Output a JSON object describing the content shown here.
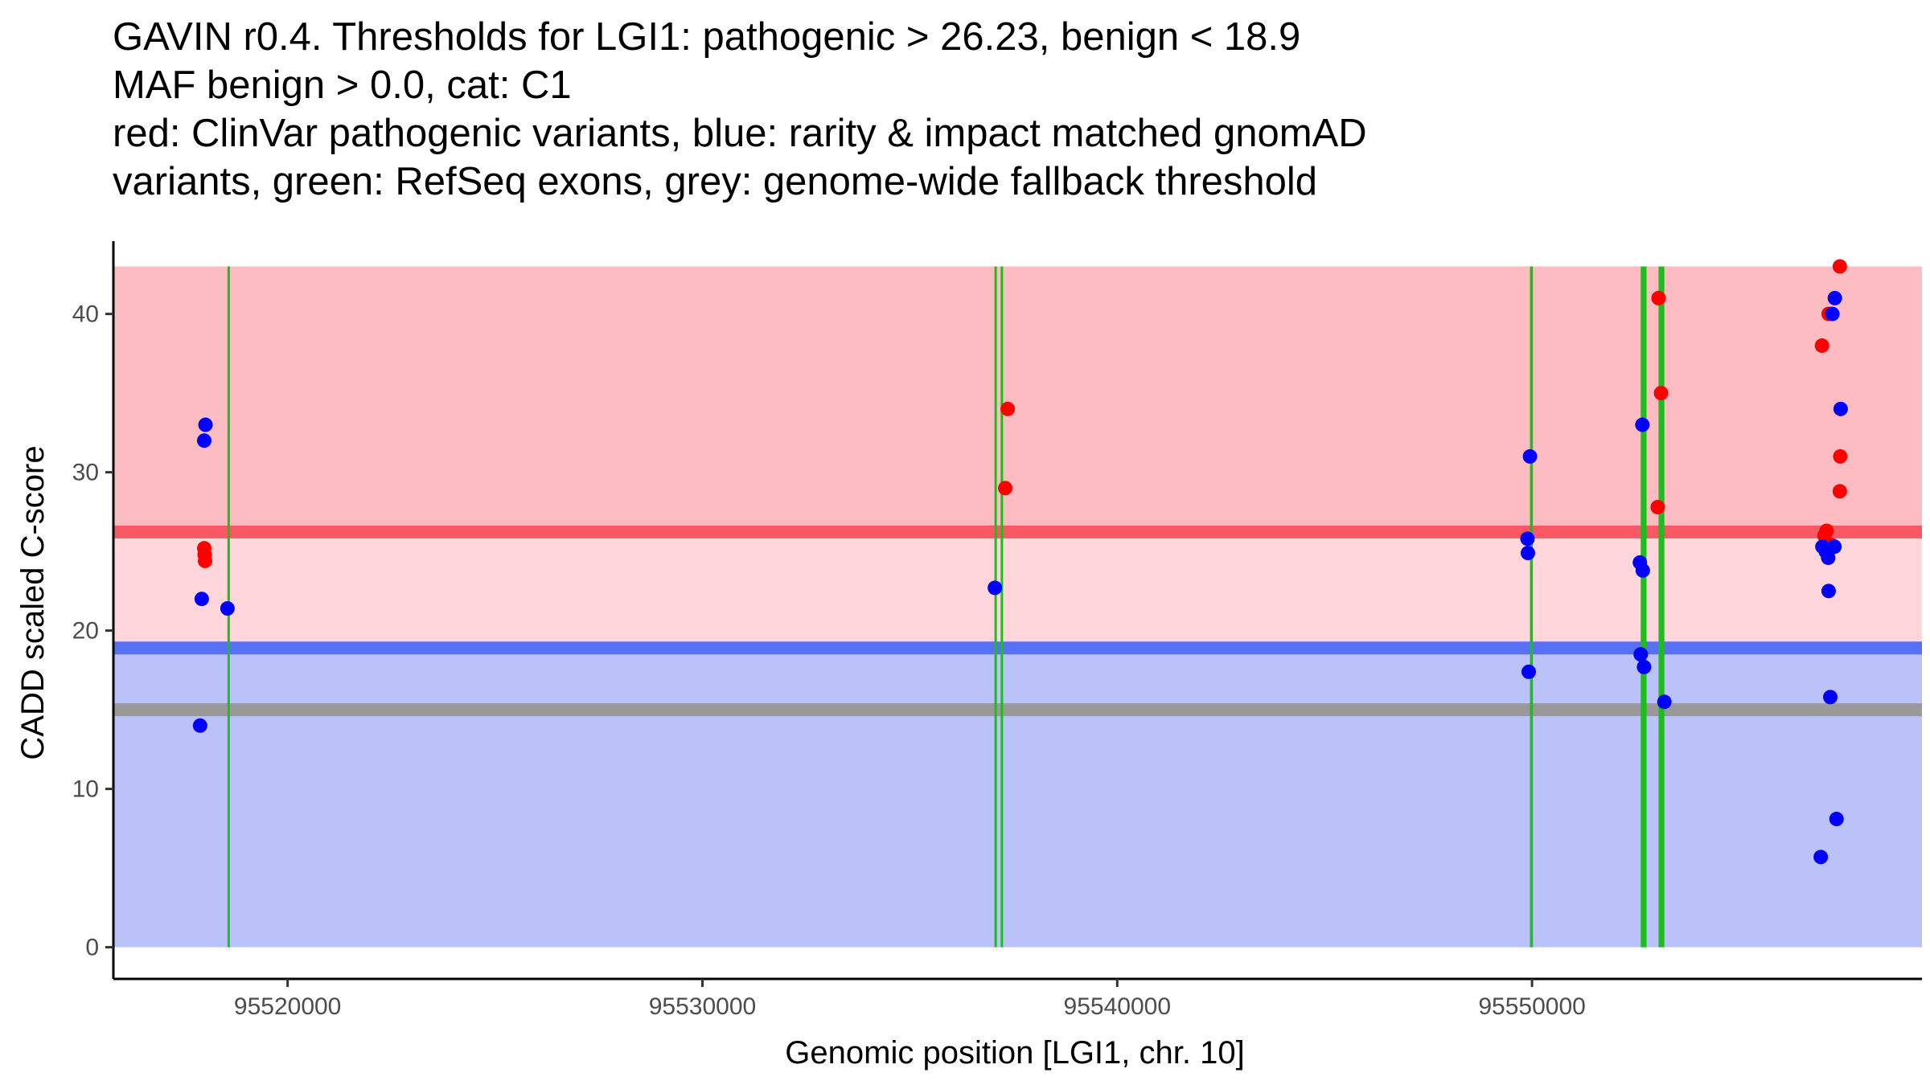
{
  "chart_data": {
    "type": "scatter",
    "title_lines": [
      "GAVIN r0.4. Thresholds for LGI1: pathogenic > 26.23, benign < 18.9",
      "MAF benign > 0.0, cat: C1",
      "red: ClinVar pathogenic variants, blue: rarity & impact matched gnomAD",
      "variants, green: RefSeq exons, grey: genome-wide fallback threshold"
    ],
    "xlabel": "Genomic position [LGI1, chr. 10]",
    "ylabel": "CADD scaled C-score",
    "xlim": [
      95515800,
      95559400
    ],
    "ylim": [
      -2.0,
      44.6
    ],
    "x_ticks": [
      95520000,
      95530000,
      95540000,
      95550000
    ],
    "y_ticks": [
      0,
      10,
      20,
      30,
      40
    ],
    "colors": {
      "pathogenic_band": "#fdbcc1",
      "middle_band": "#fed6dc",
      "benign_band": "#bbc1f9",
      "pathogenic_line": "#f85764",
      "benign_line": "#5870f5",
      "fallback_line": "#999999",
      "exon": "#1cbd1c",
      "pathogenic_point": "#ff0000",
      "benign_point": "#0000ff"
    },
    "bands": [
      {
        "name": "pathogenic",
        "ymin": 26.23,
        "ymax": 43.0,
        "color": "#fdbcc1"
      },
      {
        "name": "intermediate",
        "ymin": 18.9,
        "ymax": 26.23,
        "color": "#fed6dc"
      },
      {
        "name": "benign",
        "ymin": 0.0,
        "ymax": 18.9,
        "color": "#bbc1f9"
      }
    ],
    "thresholds": [
      {
        "name": "pathogenic",
        "y": 26.23,
        "color": "#f85764"
      },
      {
        "name": "benign",
        "y": 18.9,
        "color": "#5870f5"
      },
      {
        "name": "fallback",
        "y": 15.0,
        "color": "#999999"
      }
    ],
    "exons": [
      {
        "start": 95518550,
        "end": 95518560
      },
      {
        "start": 95537040,
        "end": 95537050
      },
      {
        "start": 95537190,
        "end": 95537200
      },
      {
        "start": 95549950,
        "end": 95550020
      },
      {
        "start": 95552620,
        "end": 95552760
      },
      {
        "start": 95553050,
        "end": 95553190
      }
    ],
    "series": [
      {
        "name": "ClinVar pathogenic variants",
        "color": "#ff0000",
        "points": [
          {
            "x": 95517990,
            "y": 25.2
          },
          {
            "x": 95518000,
            "y": 24.8
          },
          {
            "x": 95518010,
            "y": 24.4
          },
          {
            "x": 95537360,
            "y": 34.0
          },
          {
            "x": 95537300,
            "y": 29.0
          },
          {
            "x": 95553050,
            "y": 41.0
          },
          {
            "x": 95553110,
            "y": 35.0
          },
          {
            "x": 95553030,
            "y": 27.8
          },
          {
            "x": 95557420,
            "y": 43.0
          },
          {
            "x": 95557150,
            "y": 40.0
          },
          {
            "x": 95556990,
            "y": 38.0
          },
          {
            "x": 95557430,
            "y": 31.0
          },
          {
            "x": 95557420,
            "y": 28.8
          },
          {
            "x": 95557100,
            "y": 26.3
          },
          {
            "x": 95557050,
            "y": 26.0
          },
          {
            "x": 95557220,
            "y": 25.4
          }
        ]
      },
      {
        "name": "rarity & impact matched gnomAD variants",
        "color": "#0000ff",
        "points": [
          {
            "x": 95518020,
            "y": 33.0
          },
          {
            "x": 95517990,
            "y": 32.0
          },
          {
            "x": 95517930,
            "y": 22.0
          },
          {
            "x": 95518550,
            "y": 21.4
          },
          {
            "x": 95517890,
            "y": 14.0
          },
          {
            "x": 95537050,
            "y": 22.7
          },
          {
            "x": 95549950,
            "y": 31.0
          },
          {
            "x": 95549890,
            "y": 25.8
          },
          {
            "x": 95549900,
            "y": 24.9
          },
          {
            "x": 95549920,
            "y": 17.4
          },
          {
            "x": 95552660,
            "y": 33.0
          },
          {
            "x": 95552600,
            "y": 24.3
          },
          {
            "x": 95552670,
            "y": 23.8
          },
          {
            "x": 95552620,
            "y": 18.5
          },
          {
            "x": 95552700,
            "y": 17.7
          },
          {
            "x": 95553190,
            "y": 15.5
          },
          {
            "x": 95557300,
            "y": 41.0
          },
          {
            "x": 95557240,
            "y": 40.0
          },
          {
            "x": 95557440,
            "y": 34.0
          },
          {
            "x": 95557000,
            "y": 25.3
          },
          {
            "x": 95557080,
            "y": 25.0
          },
          {
            "x": 95557140,
            "y": 24.6
          },
          {
            "x": 95557290,
            "y": 25.3
          },
          {
            "x": 95557150,
            "y": 22.5
          },
          {
            "x": 95557190,
            "y": 15.8
          },
          {
            "x": 95557340,
            "y": 8.1
          },
          {
            "x": 95556960,
            "y": 5.7
          }
        ]
      }
    ]
  }
}
